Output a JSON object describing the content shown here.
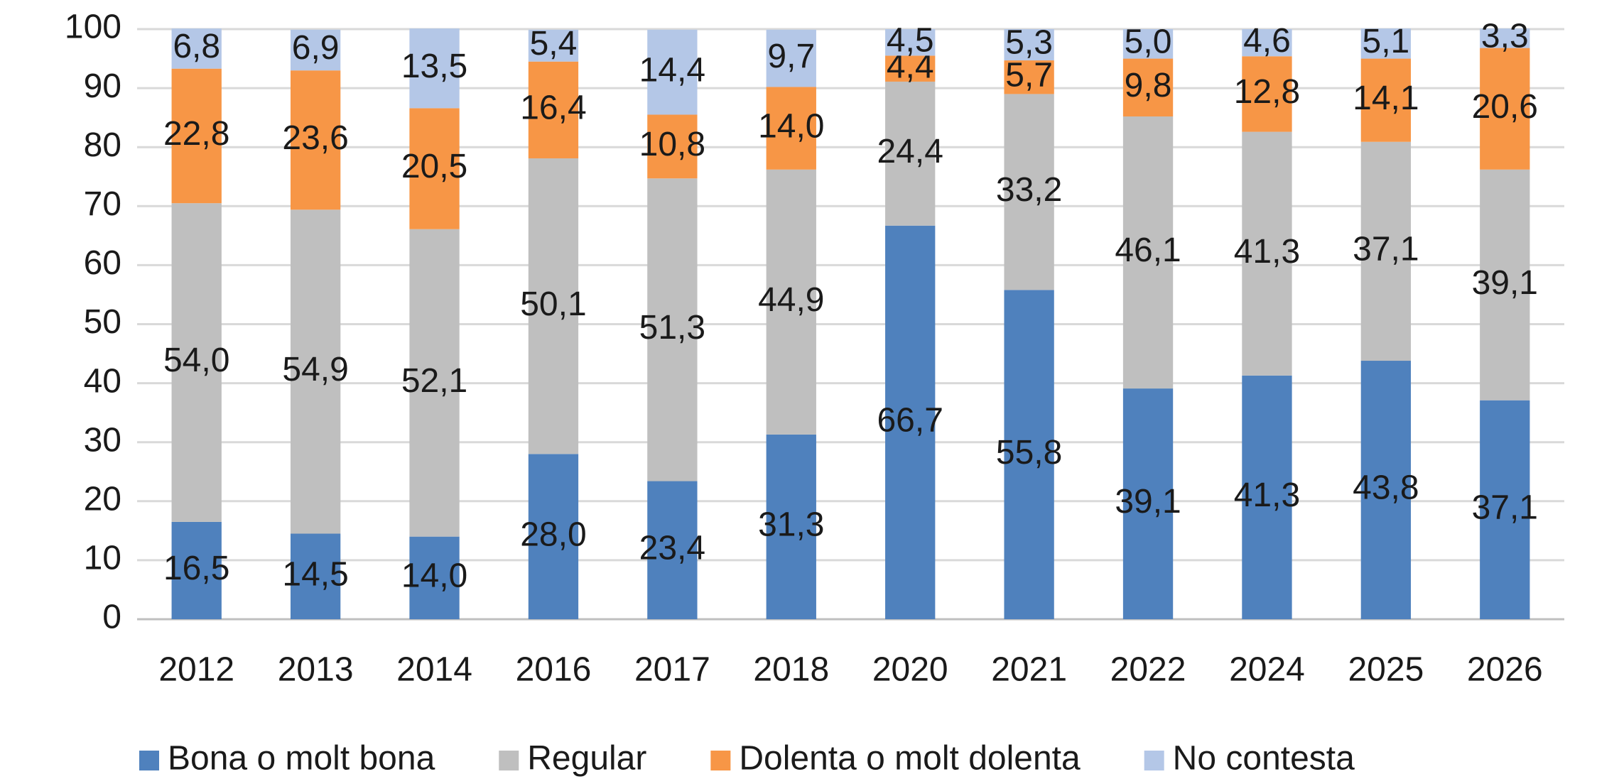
{
  "chart_data": {
    "type": "stacked_bar",
    "categories": [
      "2012",
      "2013",
      "2014",
      "2016",
      "2017",
      "2018",
      "2020",
      "2021",
      "2022",
      "2024",
      "2025",
      "2026"
    ],
    "series": [
      {
        "name": "Bona o molt bona",
        "color": "#4f81bd",
        "values": [
          16.5,
          14.5,
          14.0,
          28.0,
          23.4,
          31.3,
          66.7,
          55.8,
          39.1,
          41.3,
          43.8,
          37.1
        ],
        "value_labels": [
          "16,5",
          "14,5",
          "14,0",
          "28,0",
          "23,4",
          "31,3",
          "66,7",
          "55,8",
          "39,1",
          "41,3",
          "43,8",
          "37,1"
        ]
      },
      {
        "name": "Regular",
        "color": "#bfbfbf",
        "values": [
          54.0,
          54.9,
          52.1,
          50.1,
          51.3,
          44.9,
          24.4,
          33.2,
          46.1,
          41.3,
          37.1,
          39.1
        ],
        "value_labels": [
          "54,0",
          "54,9",
          "52,1",
          "50,1",
          "51,3",
          "44,9",
          "24,4",
          "33,2",
          "46,1",
          "41,3",
          "37,1",
          "39,1"
        ]
      },
      {
        "name": "Dolenta o molt dolenta",
        "color": "#f79646",
        "values": [
          22.8,
          23.6,
          20.5,
          16.4,
          10.8,
          14.0,
          4.4,
          5.7,
          9.8,
          12.8,
          14.1,
          20.6
        ],
        "value_labels": [
          "22,8",
          "23,6",
          "20,5",
          "16,4",
          "10,8",
          "14,0",
          "4,4",
          "5,7",
          "9,8",
          "12,8",
          "14,1",
          "20,6"
        ]
      },
      {
        "name": "No contesta",
        "color": "#b4c7e7",
        "values": [
          6.8,
          6.9,
          13.5,
          5.4,
          14.4,
          9.7,
          4.5,
          5.3,
          5.0,
          4.6,
          5.1,
          3.3
        ],
        "value_labels": [
          "6,8",
          "6,9",
          "13,5",
          "5,4",
          "14,4",
          "9,7",
          "4,5",
          "5,3",
          "5,0",
          "4,6",
          "5,1",
          "3,3"
        ]
      }
    ],
    "ylim": [
      0,
      100
    ],
    "yticks": [
      0,
      10,
      20,
      30,
      40,
      50,
      60,
      70,
      80,
      90,
      100
    ],
    "grid": true,
    "legend": "bottom"
  }
}
